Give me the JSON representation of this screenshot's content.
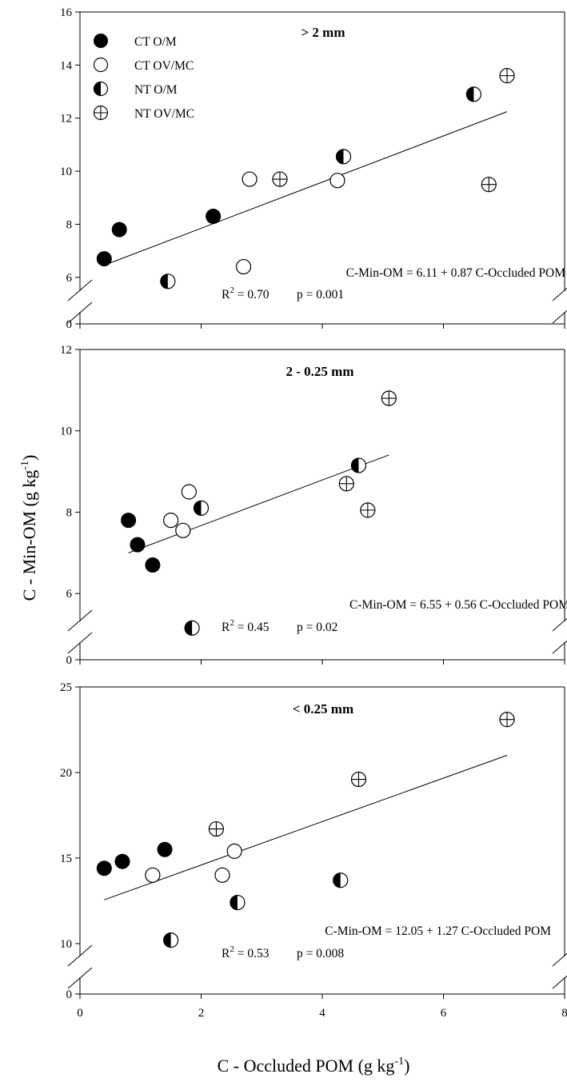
{
  "colors": {
    "ink": "#000000",
    "paper": "#ffffff"
  },
  "chart_data": [
    {
      "type": "scatter",
      "title": "> 2 mm",
      "xlabel": "",
      "ylabel": "",
      "xlim": [
        0,
        8
      ],
      "ylim": [
        0,
        16
      ],
      "axis_break": [
        0,
        5
      ],
      "y_ticks": [
        "0",
        "6",
        "8",
        "10",
        "12",
        "14",
        "16"
      ],
      "legend_position": "top-left",
      "series": [
        {
          "name": "CT O/M",
          "marker": "filled-circle",
          "points": [
            [
              0.4,
              6.7
            ],
            [
              0.65,
              7.8
            ],
            [
              2.2,
              8.3
            ]
          ]
        },
        {
          "name": "CT OV/MC",
          "marker": "open-circle",
          "points": [
            [
              2.7,
              6.4
            ],
            [
              2.8,
              9.7
            ],
            [
              4.25,
              9.65
            ]
          ]
        },
        {
          "name": "NT O/M",
          "marker": "half-filled-circle",
          "points": [
            [
              1.45,
              5.85
            ],
            [
              4.35,
              10.55
            ],
            [
              6.5,
              12.9
            ]
          ]
        },
        {
          "name": "NT OV/MC",
          "marker": "crossed-circle",
          "points": [
            [
              3.3,
              9.7
            ],
            [
              6.75,
              9.5
            ],
            [
              7.05,
              13.6
            ]
          ]
        }
      ],
      "regression": {
        "x_range": [
          0.4,
          7.05
        ],
        "equation": "C-Min-OM = 6.11 + 0.87 C-Occluded POM",
        "r2_label": "R",
        "r2_value": " = 0.70",
        "p_text": "p = 0.001"
      }
    },
    {
      "type": "scatter",
      "title": "2 - 0.25 mm",
      "xlabel": "",
      "ylabel": "",
      "xlim": [
        0,
        8
      ],
      "ylim": [
        0,
        12
      ],
      "axis_break": [
        0,
        5
      ],
      "y_ticks": [
        "0",
        "6",
        "8",
        "10",
        "12"
      ],
      "series": [
        {
          "name": "CT O/M",
          "marker": "filled-circle",
          "points": [
            [
              0.8,
              7.8
            ],
            [
              0.95,
              7.2
            ],
            [
              1.2,
              6.7
            ]
          ]
        },
        {
          "name": "CT OV/MC",
          "marker": "open-circle",
          "points": [
            [
              1.5,
              7.8
            ],
            [
              1.7,
              7.55
            ],
            [
              1.8,
              8.5
            ]
          ]
        },
        {
          "name": "NT O/M",
          "marker": "half-filled-circle",
          "points": [
            [
              1.85,
              5.15
            ],
            [
              2.0,
              8.1
            ],
            [
              4.6,
              9.15
            ]
          ]
        },
        {
          "name": "NT OV/MC",
          "marker": "crossed-circle",
          "points": [
            [
              4.4,
              8.7
            ],
            [
              4.75,
              8.05
            ],
            [
              5.1,
              10.8
            ]
          ]
        }
      ],
      "regression": {
        "x_range": [
          0.8,
          5.1
        ],
        "equation": "C-Min-OM = 6.55 + 0.56 C-Occluded POM",
        "r2_label": "R",
        "r2_value": " = 0.45",
        "p_text": "p = 0.02"
      }
    },
    {
      "type": "scatter",
      "title": "< 0.25 mm",
      "xlabel": "C - Occluded POM (g kg",
      "ylabel": "C - Min-OM (g kg",
      "xlim": [
        0,
        8
      ],
      "ylim": [
        0,
        25
      ],
      "axis_break": [
        0,
        8.5
      ],
      "x_ticks": [
        "0",
        "2",
        "4",
        "6",
        "8"
      ],
      "y_ticks": [
        "0",
        "10",
        "15",
        "20",
        "25"
      ],
      "series": [
        {
          "name": "CT O/M",
          "marker": "filled-circle",
          "points": [
            [
              0.4,
              14.4
            ],
            [
              0.7,
              14.8
            ],
            [
              1.4,
              15.5
            ]
          ]
        },
        {
          "name": "CT OV/MC",
          "marker": "open-circle",
          "points": [
            [
              1.2,
              14.0
            ],
            [
              2.35,
              14.0
            ],
            [
              2.55,
              15.4
            ]
          ]
        },
        {
          "name": "NT O/M",
          "marker": "half-filled-circle",
          "points": [
            [
              1.5,
              10.2
            ],
            [
              2.6,
              12.4
            ],
            [
              4.3,
              13.7
            ]
          ]
        },
        {
          "name": "NT OV/MC",
          "marker": "crossed-circle",
          "points": [
            [
              2.25,
              16.7
            ],
            [
              4.6,
              19.6
            ],
            [
              7.05,
              23.1
            ]
          ]
        }
      ],
      "regression": {
        "x_range": [
          0.4,
          7.05
        ],
        "equation": "C-Min-OM = 12.05 + 1.27 C-Occluded POM",
        "r2_label": "R",
        "r2_value": " = 0.53",
        "p_text": "p = 0.008"
      }
    }
  ],
  "axis_text": {
    "ylabel_prefix": "C - Min-OM (g kg",
    "xlabel_prefix": "C - Occluded POM (g kg",
    "unit_exponent": "-1",
    "unit_close": ")",
    "r2_sup": "2"
  }
}
